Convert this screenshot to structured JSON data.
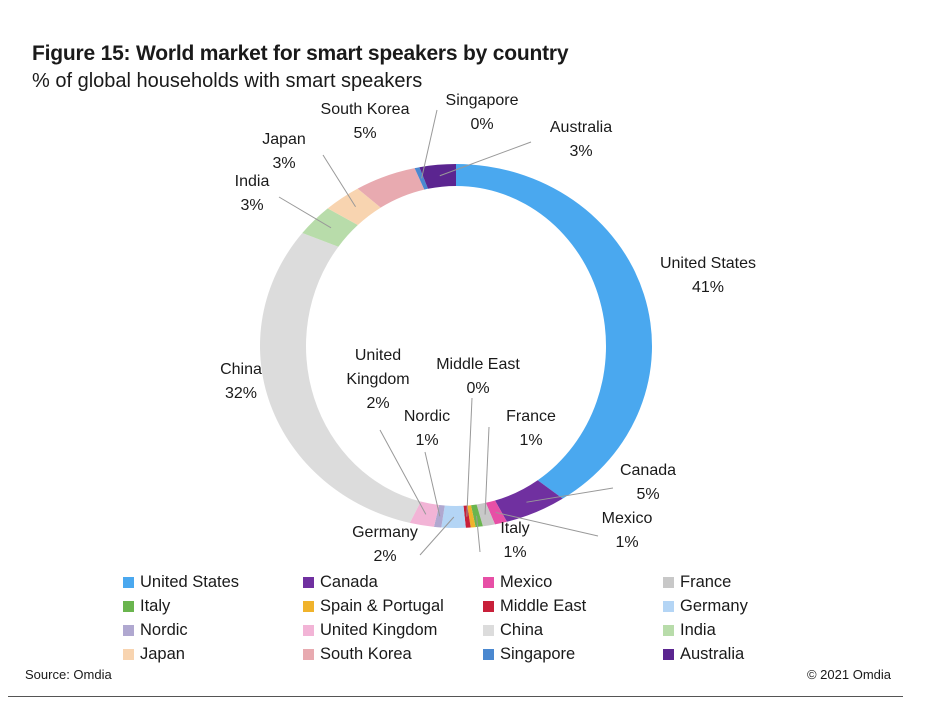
{
  "title": "Figure 15: World market for smart speakers by country",
  "subtitle": "% of global households with smart speakers",
  "source": "Source: Omdia",
  "copyright": "© 2021 Omdia",
  "chart_data": {
    "type": "pie",
    "variant": "donut",
    "title": "Figure 15: World market for smart speakers by country",
    "subtitle": "% of global households with smart speakers",
    "start": "12 o'clock, clockwise",
    "legend_position": "bottom",
    "slices": [
      {
        "name": "United States",
        "value": 41,
        "label": "41%",
        "color": "#4aa8ef"
      },
      {
        "name": "Canada",
        "value": 5,
        "label": "5%",
        "color": "#7030a0"
      },
      {
        "name": "Mexico",
        "value": 1,
        "label": "1%",
        "color": "#e74fa6"
      },
      {
        "name": "France",
        "value": 1,
        "label": "1%",
        "color": "#c8c8c8"
      },
      {
        "name": "Italy",
        "value": 0.6,
        "label": "1%",
        "color": "#6ab54e"
      },
      {
        "name": "Spain & Portugal",
        "value": 0.4,
        "label": "",
        "color": "#f0b32c"
      },
      {
        "name": "Middle East",
        "value": 0.4,
        "label": "0%",
        "color": "#c8203a"
      },
      {
        "name": "Germany",
        "value": 2,
        "label": "2%",
        "color": "#b4d5f5"
      },
      {
        "name": "Nordic",
        "value": 0.6,
        "label": "1%",
        "color": "#b0a8d0"
      },
      {
        "name": "United Kingdom",
        "value": 2,
        "label": "2%",
        "color": "#f2b4d6"
      },
      {
        "name": "China",
        "value": 32,
        "label": "32%",
        "color": "#dcdcdc"
      },
      {
        "name": "India",
        "value": 3,
        "label": "3%",
        "color": "#b8dcaa"
      },
      {
        "name": "Japan",
        "value": 3,
        "label": "3%",
        "color": "#f8d4b0"
      },
      {
        "name": "South Korea",
        "value": 5,
        "label": "5%",
        "color": "#e8aab0"
      },
      {
        "name": "Singapore",
        "value": 0.4,
        "label": "0%",
        "color": "#4a88d0"
      },
      {
        "name": "Australia",
        "value": 3,
        "label": "3%",
        "color": "#5b2590"
      }
    ],
    "legend": [
      "United States",
      "Canada",
      "Mexico",
      "France",
      "Italy",
      "Spain & Portugal",
      "Middle East",
      "Germany",
      "Nordic",
      "United Kingdom",
      "China",
      "India",
      "Japan",
      "South Korea",
      "Singapore",
      "Australia"
    ]
  }
}
